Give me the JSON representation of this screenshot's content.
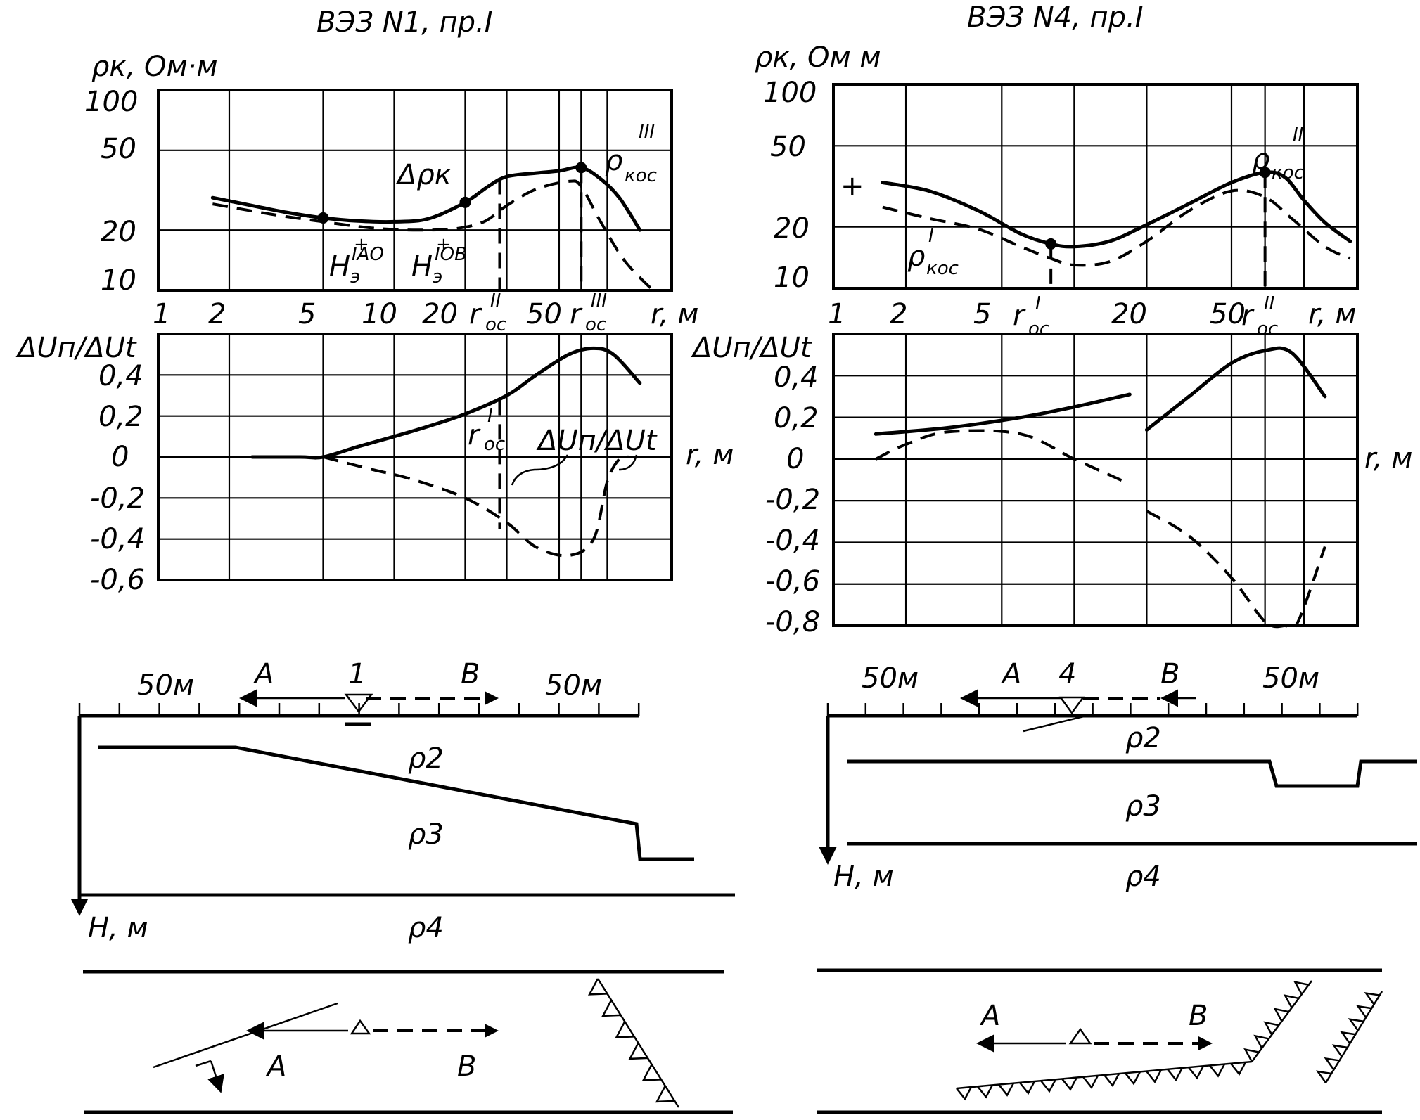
{
  "charts": [
    {
      "title": "ВЭЗ N1, пр.I",
      "rho_axis_label": "ρк, Ом·м",
      "rho_ticks": [
        "100",
        "50",
        "20",
        "10"
      ],
      "r_ticks": [
        "1",
        "2",
        "5",
        "10",
        "20"
      ],
      "r_ticks_upper": [
        "50"
      ],
      "r_axis_label": "r, м",
      "r_oc_labels": [
        {
          "base": "r",
          "sub": "oc",
          "sup": "II"
        },
        {
          "base": "r",
          "sub": "oc",
          "sup": "III"
        }
      ],
      "rho_annotations": {
        "delta": "Δρк",
        "rho_koc": {
          "base": "ρ",
          "sub": "кос",
          "sup": "III"
        },
        "h1": {
          "base": "H",
          "sub": "э",
          "sup": "IAO"
        },
        "h2": {
          "base": "H",
          "sub": "э",
          "sup": "IOB"
        }
      },
      "du_axis_label": "ΔUп/ΔUt",
      "du_ticks": [
        "0,4",
        "0,2",
        "0",
        "-0,2",
        "-0,4",
        "-0,6"
      ],
      "du_annotations": {
        "r_oc": {
          "base": "r",
          "sub": "oc",
          "sup": "I"
        },
        "ratio": "ΔUп/ΔUt",
        "r_unit": "r, м"
      },
      "section": {
        "dist_left": "50м",
        "dist_right": "50м",
        "label_a": "A",
        "label_b": "B",
        "station": "1",
        "rho2": "ρ2",
        "rho3": "ρ3",
        "rho4": "ρ4",
        "depth_axis": "H, м"
      },
      "plan": {
        "label_a": "A",
        "label_b": "B"
      }
    },
    {
      "title": "ВЭЗ N4, пр.I",
      "rho_axis_label": "ρк, Ом м",
      "rho_ticks": [
        "100",
        "50",
        "20",
        "10"
      ],
      "r_ticks": [
        "1",
        "2",
        "5",
        "20",
        "50"
      ],
      "r_axis_label": "r, м",
      "r_oc_labels": [
        {
          "base": "r",
          "sub": "oc",
          "sup": "I"
        },
        {
          "base": "r",
          "sub": "oc",
          "sup": "II"
        }
      ],
      "rho_annotations": {
        "rho_koc_min": {
          "base": "ρ",
          "sub": "кос",
          "sup": "I"
        },
        "rho_koc_max": {
          "base": "ρ",
          "sub": "кос",
          "sup": "II"
        },
        "plus": "+"
      },
      "du_axis_label": "ΔUп/ΔUt",
      "du_ticks": [
        "0,4",
        "0,2",
        "0",
        "-0,2",
        "-0,4",
        "-0,6",
        "-0,8"
      ],
      "du_annotations": {
        "r_unit": "r, м"
      },
      "section": {
        "dist_left": "50м",
        "dist_right": "50м",
        "label_a": "A",
        "label_b": "B",
        "station": "4",
        "rho2": "ρ2",
        "rho3": "ρ3",
        "rho4": "ρ4",
        "depth_axis": "H, м"
      },
      "plan": {
        "label_a": "A",
        "label_b": "B"
      }
    }
  ],
  "chart_data": [
    {
      "type": "line",
      "title": "ВЭЗ N1, пр.I",
      "xlabel": "r, м",
      "ylabel": "ρк, Ом·м",
      "x_scale": "log",
      "y_scale": "log",
      "xlim": [
        1,
        150
      ],
      "ylim": [
        10,
        100
      ],
      "series": [
        {
          "style": "solid",
          "x": [
            1.7,
            2.5,
            3.5,
            5,
            7,
            10,
            14,
            20,
            25,
            30,
            40,
            50,
            62,
            75,
            90,
            110
          ],
          "y": [
            29,
            26.5,
            24.5,
            23,
            22.2,
            22,
            22.8,
            27.5,
            33,
            37,
            38.5,
            39.5,
            41,
            36,
            29,
            20
          ]
        },
        {
          "style": "dashed",
          "x": [
            1.7,
            3,
            5,
            8,
            12,
            18,
            24,
            30,
            40,
            55,
            62,
            75,
            95,
            125
          ],
          "y": [
            27,
            24,
            22,
            20.5,
            20,
            20.3,
            22,
            26.5,
            32,
            35,
            33,
            22,
            14,
            10
          ]
        }
      ],
      "points": [
        {
          "name": "ρкос^III",
          "x": 62,
          "y": 41
        },
        {
          "name": "H^IAO",
          "x": 5,
          "y": 23
        },
        {
          "name": "H^IOB",
          "x": 20,
          "y": 27.5
        }
      ]
    },
    {
      "type": "line",
      "title": "ВЭЗ N1, пр.I",
      "xlabel": "r, м",
      "ylabel": "ΔUп/ΔUt",
      "x_scale": "log",
      "xlim": [
        1,
        150
      ],
      "ylim": [
        -0.6,
        0.6
      ],
      "series": [
        {
          "style": "solid",
          "x": [
            2.5,
            4,
            5,
            7,
            10,
            14,
            20,
            30,
            40,
            55,
            70,
            85,
            110
          ],
          "y": [
            0,
            0,
            0,
            0.05,
            0.1,
            0.15,
            0.21,
            0.3,
            0.4,
            0.5,
            0.53,
            0.5,
            0.36
          ]
        },
        {
          "style": "dashed",
          "x": [
            5,
            8,
            12,
            20,
            30,
            40,
            55,
            70,
            80,
            90,
            100
          ],
          "y": [
            0,
            -0.06,
            -0.11,
            -0.2,
            -0.32,
            -0.44,
            -0.48,
            -0.4,
            -0.12,
            -0.01,
            0
          ]
        }
      ]
    },
    {
      "type": "line",
      "title": "ВЭЗ N4, пр.I",
      "xlabel": "r, м",
      "ylabel": "ρк, Ом м",
      "x_scale": "log",
      "y_scale": "log",
      "xlim": [
        1,
        150
      ],
      "ylim": [
        10,
        100
      ],
      "series": [
        {
          "style": "solid",
          "x": [
            1.6,
            2.5,
            4,
            6,
            8,
            10,
            14,
            20,
            30,
            45,
            62,
            75,
            90,
            110,
            140
          ],
          "y": [
            33,
            30,
            24,
            18.5,
            16.5,
            16,
            17,
            20.5,
            26,
            33,
            37,
            35,
            27,
            21,
            17
          ]
        },
        {
          "style": "dashed",
          "x": [
            1.6,
            2.5,
            4,
            6,
            8,
            10,
            14,
            20,
            30,
            45,
            62,
            80,
            110,
            140
          ],
          "y": [
            25,
            22,
            19.5,
            16,
            14,
            13,
            13.5,
            17,
            24,
            30,
            28,
            22,
            16,
            14
          ]
        }
      ],
      "points": [
        {
          "name": "ρкос^I",
          "x": 8,
          "y": 16.5
        },
        {
          "name": "ρкос^II",
          "x": 62,
          "y": 37
        }
      ]
    },
    {
      "type": "line",
      "title": "ВЭЗ N4, пр.I",
      "xlabel": "r, м",
      "ylabel": "ΔUп/ΔUt",
      "x_scale": "log",
      "xlim": [
        1,
        150
      ],
      "ylim": [
        -0.8,
        0.6
      ],
      "series": [
        {
          "style": "solid",
          "name": "segment 1",
          "x": [
            1.5,
            3,
            6,
            10,
            17
          ],
          "y": [
            0.12,
            0.15,
            0.2,
            0.25,
            0.31
          ]
        },
        {
          "style": "solid",
          "name": "segment 2",
          "x": [
            20,
            30,
            45,
            62,
            80,
            110
          ],
          "y": [
            0.14,
            0.3,
            0.46,
            0.52,
            0.51,
            0.3
          ]
        },
        {
          "style": "dashed",
          "name": "segment 1",
          "x": [
            1.5,
            2,
            3,
            6,
            10,
            17
          ],
          "y": [
            0,
            0.07,
            0.13,
            0.12,
            0,
            -0.12
          ]
        },
        {
          "style": "dashed",
          "name": "segment 2",
          "x": [
            20,
            30,
            45,
            62,
            75,
            85,
            110
          ],
          "y": [
            -0.25,
            -0.37,
            -0.57,
            -0.78,
            -0.8,
            -0.78,
            -0.42
          ]
        }
      ]
    }
  ]
}
